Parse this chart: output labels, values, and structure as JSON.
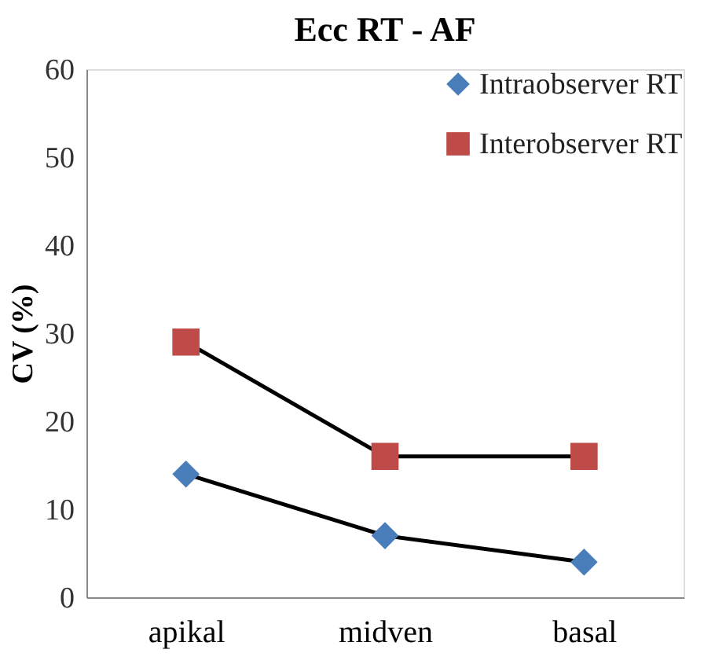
{
  "chart_data": {
    "type": "line",
    "title": "Ecc RT - AF",
    "ylabel": "CV (%)",
    "categories": [
      "apikal",
      "midven",
      "basal"
    ],
    "series": [
      {
        "name": "Intraobserver RT",
        "color": "#4a7ebb",
        "marker": "diamond",
        "values": [
          14,
          7,
          4
        ]
      },
      {
        "name": "Interobserver RT",
        "color": "#be4b48",
        "marker": "square",
        "values": [
          29,
          16,
          16
        ]
      }
    ],
    "ylim": [
      0,
      60
    ],
    "yticks": [
      0,
      10,
      20,
      30,
      40,
      50,
      60
    ],
    "grid": false,
    "legend": "top right",
    "line_style": "solid"
  }
}
